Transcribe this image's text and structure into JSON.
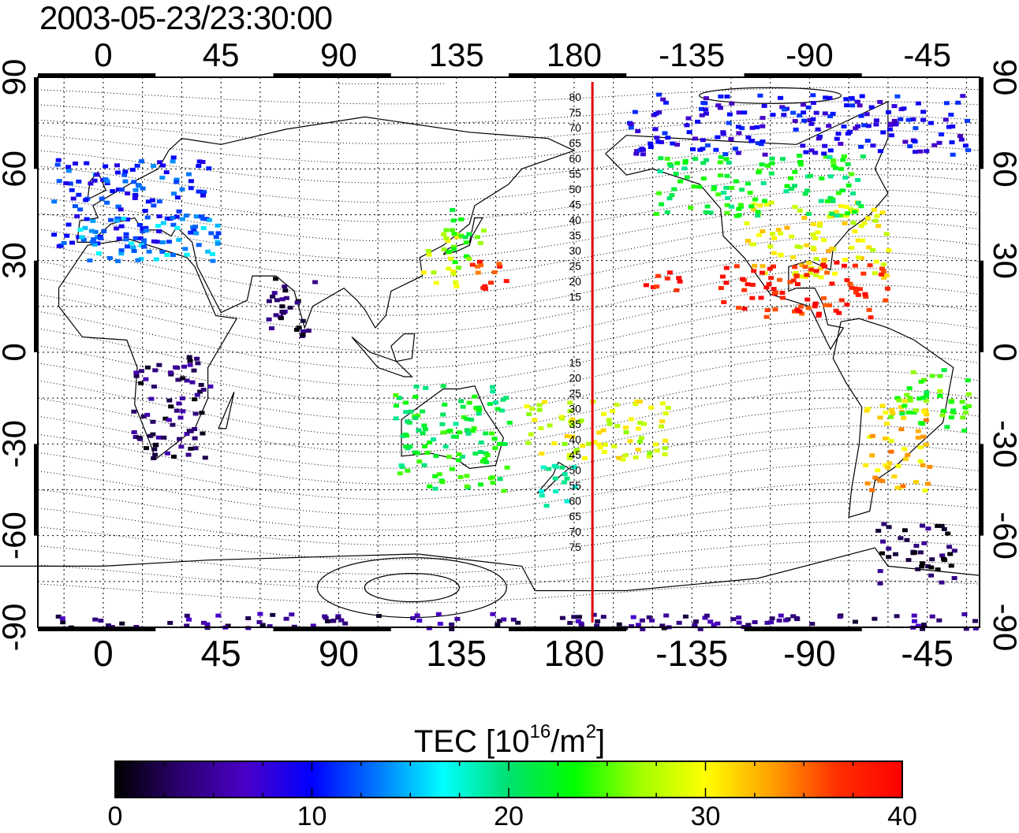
{
  "title": "2003-05-23/23:30:00",
  "map": {
    "projection": "equirectangular",
    "lon_range": [
      -25,
      335
    ],
    "lat_range": [
      -90,
      90
    ],
    "top_lon_ticks": [
      "0",
      "45",
      "90",
      "135",
      "180",
      "-135",
      "-90",
      "-45"
    ],
    "bottom_lon_ticks": [
      "0",
      "45",
      "90",
      "135",
      "180",
      "-135",
      "-90",
      "-45"
    ],
    "left_lat_ticks": [
      "90",
      "60",
      "30",
      "0",
      "-30",
      "-60",
      "-90"
    ],
    "right_lat_ticks": [
      "90",
      "60",
      "30",
      "0",
      "-30",
      "-60",
      "-90"
    ],
    "grid": true,
    "contour_labels": [
      "80",
      "75",
      "70",
      "65",
      "60",
      "55",
      "50",
      "45",
      "40",
      "35",
      "30",
      "25",
      "20",
      "15",
      "15",
      "20",
      "25",
      "30",
      "35",
      "40",
      "45",
      "50",
      "55",
      "60",
      "65",
      "70",
      "75"
    ],
    "marker_longitude": 187,
    "marker_color": "#e00000"
  },
  "colorbar": {
    "label_prefix": "TEC  [10",
    "label_exp1": "16",
    "label_mid": "/m",
    "label_exp2": "2",
    "label_suffix": "]",
    "min": 0,
    "max": 40,
    "tick_labels": [
      "0",
      "10",
      "20",
      "30",
      "40"
    ],
    "colors": [
      "#000000",
      "#2b0070",
      "#4a00c8",
      "#0000ff",
      "#0078ff",
      "#00ffff",
      "#00e070",
      "#00ff00",
      "#a0ff00",
      "#ffff00",
      "#ffa000",
      "#ff3000",
      "#ff0000"
    ]
  },
  "chart_data": {
    "type": "heatmap",
    "title": "2003-05-23/23:30:00",
    "xlabel": "",
    "ylabel": "",
    "colorbar_label": "TEC [10^16/m^2]",
    "xlim": [
      -25,
      335
    ],
    "ylim": [
      -90,
      90
    ],
    "value_range": [
      0,
      40
    ],
    "regions": [
      {
        "lon": [
          -20,
          40
        ],
        "lat": [
          35,
          65
        ],
        "tec": 11
      },
      {
        "lon": [
          -10,
          45
        ],
        "lat": [
          30,
          45
        ],
        "tec": 14
      },
      {
        "lon": [
          120,
          135
        ],
        "lat": [
          22,
          40
        ],
        "tec": 28
      },
      {
        "lon": [
          130,
          145
        ],
        "lat": [
          30,
          48
        ],
        "tec": 24
      },
      {
        "lon": [
          140,
          155
        ],
        "lat": [
          20,
          32
        ],
        "tec": 37
      },
      {
        "lon": [
          245,
          300
        ],
        "lat": [
          25,
          50
        ],
        "tec": 30
      },
      {
        "lon": [
          210,
          290
        ],
        "lat": [
          45,
          65
        ],
        "tec": 22
      },
      {
        "lon": [
          235,
          300
        ],
        "lat": [
          12,
          30
        ],
        "tec": 38
      },
      {
        "lon": [
          205,
          220
        ],
        "lat": [
          20,
          28
        ],
        "tec": 39
      },
      {
        "lon": [
          200,
          330
        ],
        "lat": [
          65,
          85
        ],
        "tec": 9
      },
      {
        "lon": [
          290,
          315
        ],
        "lat": [
          -45,
          -15
        ],
        "tec": 32
      },
      {
        "lon": [
          300,
          330
        ],
        "lat": [
          -25,
          -5
        ],
        "tec": 24
      },
      {
        "lon": [
          110,
          155
        ],
        "lat": [
          -45,
          -10
        ],
        "tec": 22
      },
      {
        "lon": [
          165,
          180
        ],
        "lat": [
          -50,
          -35
        ],
        "tec": 17
      },
      {
        "lon": [
          160,
          215
        ],
        "lat": [
          -35,
          -15
        ],
        "tec": 29
      },
      {
        "lon": [
          10,
          40
        ],
        "lat": [
          -35,
          0
        ],
        "tec": 3
      },
      {
        "lon": [
          295,
          325
        ],
        "lat": [
          -75,
          -55
        ],
        "tec": 2
      },
      {
        "lon": [
          -25,
          335
        ],
        "lat": [
          -90,
          -85
        ],
        "tec": 4
      },
      {
        "lon": [
          60,
          80
        ],
        "lat": [
          5,
          25
        ],
        "tec": 3
      }
    ]
  }
}
